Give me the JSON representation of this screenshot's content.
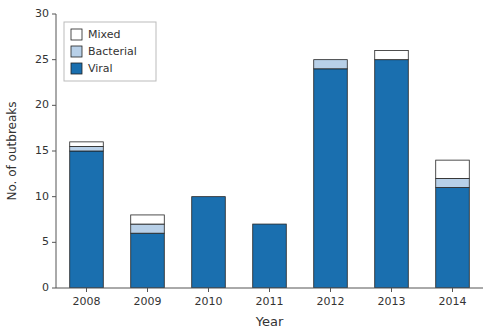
{
  "chart_data": {
    "type": "bar",
    "stacked": true,
    "categories": [
      "2008",
      "2009",
      "2010",
      "2011",
      "2012",
      "2013",
      "2014"
    ],
    "series": [
      {
        "name": "Viral",
        "color": "#1a6faf",
        "values": [
          15,
          6,
          10,
          7,
          24,
          25,
          11
        ]
      },
      {
        "name": "Bacterial",
        "color": "#b8d0e8",
        "values": [
          0.5,
          1,
          0,
          0,
          1,
          0,
          1
        ]
      },
      {
        "name": "Mixed",
        "color": "#ffffff",
        "values": [
          0.5,
          1,
          0,
          0,
          0,
          1,
          2
        ]
      }
    ],
    "xlabel": "Year",
    "ylabel": "No. of outbreaks",
    "ylim": [
      0,
      30
    ],
    "yticks": [
      0,
      5,
      10,
      15,
      20,
      25,
      30
    ],
    "grid": false,
    "legend": "upper left"
  }
}
